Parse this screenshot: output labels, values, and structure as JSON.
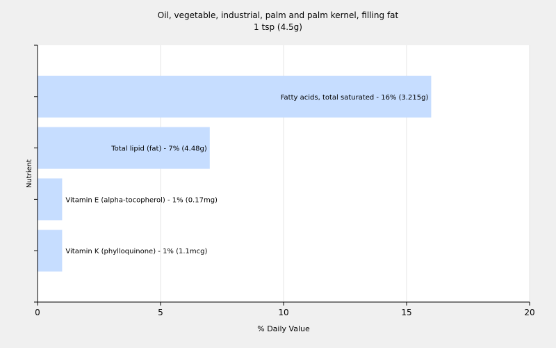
{
  "chart_data": {
    "type": "bar",
    "orientation": "horizontal",
    "title": "Oil, vegetable, industrial, palm and palm kernel, filling fat",
    "subtitle": "1 tsp (4.5g)",
    "xlabel": "% Daily Value",
    "ylabel": "Nutrient",
    "xlim": [
      0,
      20
    ],
    "xticks": [
      0,
      5,
      10,
      15,
      20
    ],
    "grid": true,
    "bar_color": "#c6ddff",
    "categories": [
      "Fatty acids, total saturated",
      "Total lipid (fat)",
      "Vitamin E (alpha-tocopherol)",
      "Vitamin K (phylloquinone)"
    ],
    "values": [
      16,
      7,
      1,
      1
    ],
    "data_labels": [
      "Fatty acids, total saturated - 16% (3.215g)",
      "Total lipid (fat) - 7% (4.48g)",
      "Vitamin E (alpha-tocopherol) - 1% (0.17mg)",
      "Vitamin K (phylloquinone) - 1% (1.1mcg)"
    ]
  }
}
